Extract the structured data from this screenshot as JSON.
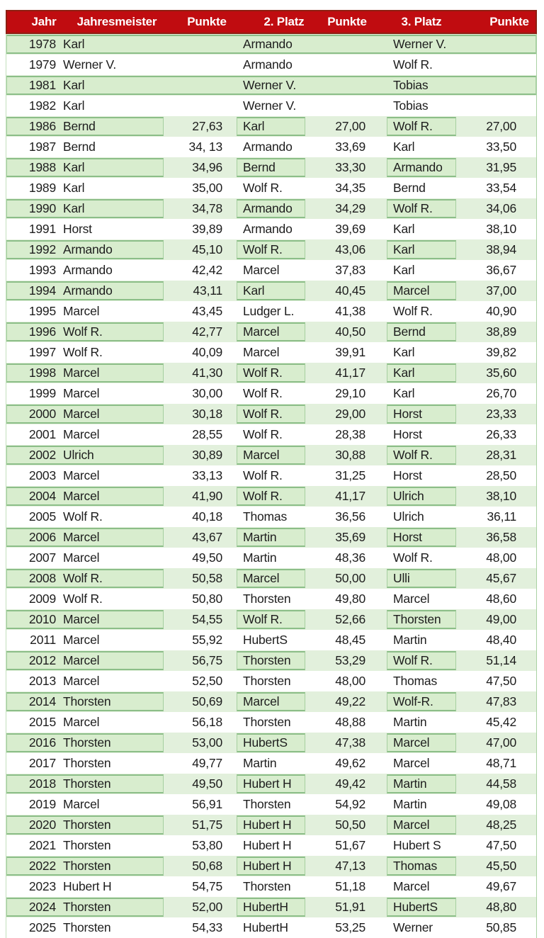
{
  "colors": {
    "header_bg": "#c00c10",
    "header_border": "#8d1f12",
    "header_text": "#ffffff",
    "row_green": "#e2f0dc",
    "box_green": "#d8edce",
    "box_border": "#8cbe88",
    "text": "#1d1d1d"
  },
  "chart_data": {
    "type": "table",
    "title": "",
    "columns": [
      "Jahr",
      "Jahresmeister",
      "Punkte",
      "2. Platz",
      "Punkte",
      "3. Platz",
      "Punkte"
    ],
    "rows": [
      {
        "year": "1978",
        "champion": "Karl",
        "p1": "",
        "second": "Armando",
        "p2": "",
        "third": "Werner V.",
        "p3": "",
        "green": true,
        "full": true
      },
      {
        "year": "1979",
        "champion": "Werner V.",
        "p1": "",
        "second": "Armando",
        "p2": "",
        "third": "Wolf R.",
        "p3": "",
        "green": false,
        "full": false
      },
      {
        "year": "1981",
        "champion": "Karl",
        "p1": "",
        "second": "Werner V.",
        "p2": "",
        "third": "Tobias",
        "p3": "",
        "green": true,
        "full": true
      },
      {
        "year": "1982",
        "champion": "Karl",
        "p1": "",
        "second": "Werner V.",
        "p2": "",
        "third": "Tobias",
        "p3": "",
        "green": false,
        "full": false
      },
      {
        "year": "1986",
        "champion": "Bernd",
        "p1": "27,63",
        "second": "Karl",
        "p2": "27,00",
        "third": "Wolf R.",
        "p3": "27,00",
        "green": true,
        "full": false
      },
      {
        "year": "1987",
        "champion": "Bernd",
        "p1": "34, 13",
        "second": "Armando",
        "p2": "33,69",
        "third": "Karl",
        "p3": "33,50",
        "green": false,
        "full": false
      },
      {
        "year": "1988",
        "champion": "Karl",
        "p1": "34,96",
        "second": "Bernd",
        "p2": "33,30",
        "third": "Armando",
        "p3": "31,95",
        "green": true,
        "full": false
      },
      {
        "year": "1989",
        "champion": "Karl",
        "p1": "35,00",
        "second": "Wolf R.",
        "p2": "34,35",
        "third": "Bernd",
        "p3": "33,54",
        "green": false,
        "full": false
      },
      {
        "year": "1990",
        "champion": "Karl",
        "p1": "34,78",
        "second": "Armando",
        "p2": "34,29",
        "third": "Wolf R.",
        "p3": "34,06",
        "green": true,
        "full": false
      },
      {
        "year": "1991",
        "champion": "Horst",
        "p1": "39,89",
        "second": "Armando",
        "p2": "39,69",
        "third": "Karl",
        "p3": "38,10",
        "green": false,
        "full": false
      },
      {
        "year": "1992",
        "champion": "Armando",
        "p1": "45,10",
        "second": "Wolf R.",
        "p2": "43,06",
        "third": "Karl",
        "p3": "38,94",
        "green": true,
        "full": false
      },
      {
        "year": "1993",
        "champion": "Armando",
        "p1": "42,42",
        "second": "Marcel",
        "p2": "37,83",
        "third": "Karl",
        "p3": "36,67",
        "green": false,
        "full": false
      },
      {
        "year": "1994",
        "champion": "Armando",
        "p1": "43,11",
        "second": "Karl",
        "p2": "40,45",
        "third": "Marcel",
        "p3": "37,00",
        "green": true,
        "full": false
      },
      {
        "year": "1995",
        "champion": "Marcel",
        "p1": "43,45",
        "second": "Ludger L.",
        "p2": "41,38",
        "third": "Wolf R.",
        "p3": "40,90",
        "green": false,
        "full": false
      },
      {
        "year": "1996",
        "champion": "Wolf R.",
        "p1": "42,77",
        "second": "Marcel",
        "p2": "40,50",
        "third": "Bernd",
        "p3": "38,89",
        "green": true,
        "full": false
      },
      {
        "year": "1997",
        "champion": "Wolf R.",
        "p1": "40,09",
        "second": "Marcel",
        "p2": "39,91",
        "third": "Karl",
        "p3": "39,82",
        "green": false,
        "full": false
      },
      {
        "year": "1998",
        "champion": "Marcel",
        "p1": "41,30",
        "second": "Wolf R.",
        "p2": "41,17",
        "third": "Karl",
        "p3": "35,60",
        "green": true,
        "full": false
      },
      {
        "year": "1999",
        "champion": "Marcel",
        "p1": "30,00",
        "second": "Wolf R.",
        "p2": "29,10",
        "third": "Karl",
        "p3": "26,70",
        "green": false,
        "full": false
      },
      {
        "year": "2000",
        "champion": "Marcel",
        "p1": "30,18",
        "second": "Wolf R.",
        "p2": "29,00",
        "third": "Horst",
        "p3": "23,33",
        "green": true,
        "full": false
      },
      {
        "year": "2001",
        "champion": "Marcel",
        "p1": "28,55",
        "second": "Wolf R.",
        "p2": "28,38",
        "third": "Horst",
        "p3": "26,33",
        "green": false,
        "full": false
      },
      {
        "year": "2002",
        "champion": "Ulrich",
        "p1": "30,89",
        "second": "Marcel",
        "p2": "30,88",
        "third": "Wolf R.",
        "p3": "28,31",
        "green": true,
        "full": false
      },
      {
        "year": "2003",
        "champion": "Marcel",
        "p1": "33,13",
        "second": "Wolf R.",
        "p2": "31,25",
        "third": "Horst",
        "p3": "28,50",
        "green": false,
        "full": false
      },
      {
        "year": "2004",
        "champion": "Marcel",
        "p1": "41,90",
        "second": "Wolf R.",
        "p2": "41,17",
        "third": "Ulrich",
        "p3": "38,10",
        "green": true,
        "full": false
      },
      {
        "year": "2005",
        "champion": "Wolf R.",
        "p1": "40,18",
        "second": "Thomas",
        "p2": "36,56",
        "third": "Ulrich",
        "p3": "36,11",
        "green": false,
        "full": false
      },
      {
        "year": "2006",
        "champion": "Marcel",
        "p1": "43,67",
        "second": "Martin",
        "p2": "35,69",
        "third": "Horst",
        "p3": "36,58",
        "green": true,
        "full": false
      },
      {
        "year": "2007",
        "champion": "Marcel",
        "p1": "49,50",
        "second": "Martin",
        "p2": "48,36",
        "third": "Wolf R.",
        "p3": "48,00",
        "green": false,
        "full": false
      },
      {
        "year": "2008",
        "champion": "Wolf R.",
        "p1": "50,58",
        "second": "Marcel",
        "p2": "50,00",
        "third": "Ulli",
        "p3": "45,67",
        "green": true,
        "full": false
      },
      {
        "year": "2009",
        "champion": "Wolf R.",
        "p1": "50,80",
        "second": "Thorsten",
        "p2": "49,80",
        "third": "Marcel",
        "p3": "48,60",
        "green": false,
        "full": false
      },
      {
        "year": "2010",
        "champion": "Marcel",
        "p1": "54,55",
        "second": "Wolf R.",
        "p2": "52,66",
        "third": "Thorsten",
        "p3": "49,00",
        "green": true,
        "full": false
      },
      {
        "year": "2011",
        "champion": "Marcel",
        "p1": "55,92",
        "second": "HubertS",
        "p2": "48,45",
        "third": "Martin",
        "p3": "48,40",
        "green": false,
        "full": false
      },
      {
        "year": "2012",
        "champion": "Marcel",
        "p1": "56,75",
        "second": "Thorsten",
        "p2": "53,29",
        "third": "Wolf R.",
        "p3": "51,14",
        "green": true,
        "full": false
      },
      {
        "year": "2013",
        "champion": "Marcel",
        "p1": "52,50",
        "second": "Thorsten",
        "p2": "48,00",
        "third": "Thomas",
        "p3": "47,50",
        "green": false,
        "full": false
      },
      {
        "year": "2014",
        "champion": "Thorsten",
        "p1": "50,69",
        "second": "Marcel",
        "p2": "49,22",
        "third": "Wolf-R.",
        "p3": "47,83",
        "green": true,
        "full": false
      },
      {
        "year": "2015",
        "champion": "Marcel",
        "p1": "56,18",
        "second": "Thorsten",
        "p2": "48,88",
        "third": "Martin",
        "p3": "45,42",
        "green": false,
        "full": false
      },
      {
        "year": "2016",
        "champion": "Thorsten",
        "p1": "53,00",
        "second": "HubertS",
        "p2": "47,38",
        "third": "Marcel",
        "p3": "47,00",
        "green": true,
        "full": false
      },
      {
        "year": "2017",
        "champion": "Thorsten",
        "p1": "49,77",
        "second": "Martin",
        "p2": "49,62",
        "third": "Marcel",
        "p3": "48,71",
        "green": false,
        "full": false
      },
      {
        "year": "2018",
        "champion": "Thorsten",
        "p1": "49,50",
        "second": "Hubert H",
        "p2": "49,42",
        "third": "Martin",
        "p3": "44,58",
        "green": true,
        "full": false
      },
      {
        "year": "2019",
        "champion": "Marcel",
        "p1": "56,91",
        "second": "Thorsten",
        "p2": "54,92",
        "third": "Martin",
        "p3": "49,08",
        "green": false,
        "full": false
      },
      {
        "year": "2020",
        "champion": "Thorsten",
        "p1": "51,75",
        "second": "Hubert H",
        "p2": "50,50",
        "third": "Marcel",
        "p3": "48,25",
        "green": true,
        "full": false
      },
      {
        "year": "2021",
        "champion": "Thorsten",
        "p1": "53,80",
        "second": "Hubert H",
        "p2": "51,67",
        "third": "Hubert S",
        "p3": "47,50",
        "green": false,
        "full": false
      },
      {
        "year": "2022",
        "champion": "Thorsten",
        "p1": "50,68",
        "second": "Hubert H",
        "p2": "47,13",
        "third": "Thomas",
        "p3": "45,50",
        "green": true,
        "full": false
      },
      {
        "year": "2023",
        "champion": "Hubert H",
        "p1": "54,75",
        "second": "Thorsten",
        "p2": "51,18",
        "third": "Marcel",
        "p3": "49,67",
        "green": false,
        "full": false
      },
      {
        "year": "2024",
        "champion": "Thorsten",
        "p1": "52,00",
        "second": "HubertH",
        "p2": "51,91",
        "third": "HubertS",
        "p3": "48,80",
        "green": true,
        "full": false
      },
      {
        "year": "2025",
        "champion": "Thorsten",
        "p1": "54,33",
        "second": "HubertH",
        "p2": "53,25",
        "third": "Werner",
        "p3": "50,85",
        "green": false,
        "full": false
      }
    ]
  }
}
